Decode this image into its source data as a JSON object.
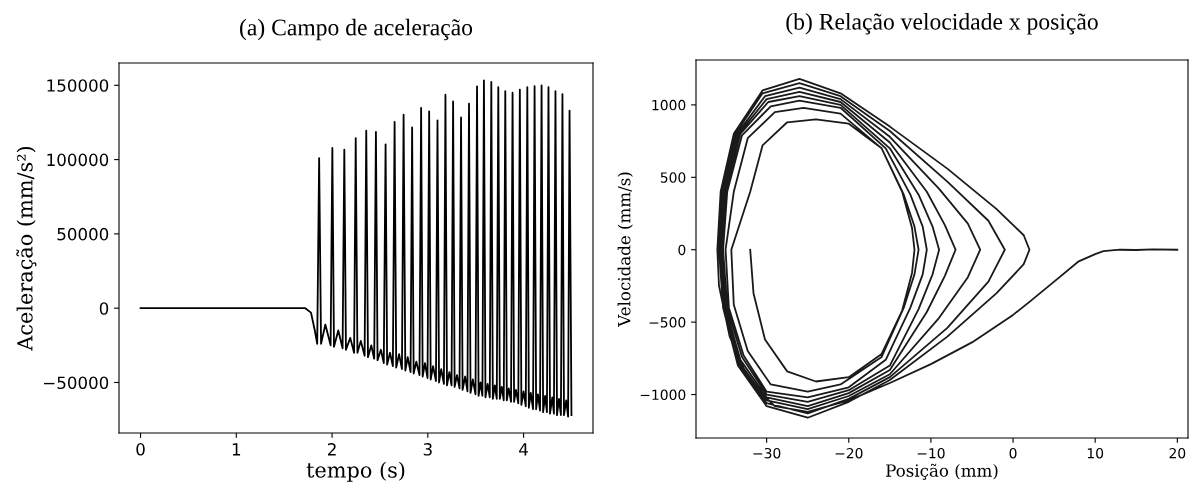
{
  "chart_data": [
    {
      "type": "line",
      "title": "(a) Campo de aceleração",
      "xlabel": "tempo (s)",
      "ylabel": "Aceleração (mm/s²)",
      "xlim": [
        -0.225,
        4.725
      ],
      "ylim": [
        -84000,
        165000
      ],
      "xticks": [
        0,
        1,
        2,
        3,
        4
      ],
      "yticks": [
        {
          "value": -50000,
          "label": "−50000"
        },
        0,
        50000,
        100000,
        150000
      ],
      "series": [
        {
          "color": "#000000",
          "x": [
            0,
            0.5,
            1.0,
            1.5,
            1.72,
            1.78,
            1.82,
            1.845,
            1.865,
            1.885,
            1.93,
            1.985,
            2.003,
            2.02,
            2.065,
            2.11,
            2.128,
            2.145,
            2.19,
            2.23,
            2.247,
            2.265,
            2.3,
            2.34,
            2.357,
            2.375,
            2.41,
            2.44,
            2.458,
            2.475,
            2.51,
            2.54,
            2.559,
            2.575,
            2.605,
            2.635,
            2.653,
            2.67,
            2.7,
            2.73,
            2.747,
            2.765,
            2.79,
            2.82,
            2.836,
            2.852,
            2.88,
            2.913,
            2.93,
            2.946,
            2.97,
            2.997,
            3.014,
            3.03,
            3.055,
            3.085,
            3.101,
            3.117,
            3.14,
            3.168,
            3.184,
            3.2,
            3.225,
            3.248,
            3.264,
            3.28,
            3.305,
            3.331,
            3.347,
            3.363,
            3.39,
            3.414,
            3.43,
            3.446,
            3.47,
            3.498,
            3.514,
            3.53,
            3.55,
            3.57,
            3.586,
            3.602,
            3.625,
            3.647,
            3.663,
            3.679,
            3.7,
            3.72,
            3.736,
            3.752,
            3.772,
            3.793,
            3.809,
            3.825,
            3.845,
            3.869,
            3.885,
            3.901,
            3.92,
            3.945,
            3.961,
            3.977,
            4.0,
            4.023,
            4.039,
            4.055,
            4.075,
            4.099,
            4.115,
            4.131,
            4.15,
            4.172,
            4.188,
            4.204,
            4.225,
            4.244,
            4.26,
            4.276,
            4.3,
            4.317,
            4.333,
            4.349,
            4.37,
            4.39,
            4.406,
            4.422,
            4.445,
            4.465,
            4.48,
            4.5
          ],
          "values": [
            0,
            0,
            0,
            0,
            0,
            -3000,
            -15000,
            -24000,
            101000,
            -24000,
            -11000,
            -25000,
            107800,
            -26000,
            -15000,
            -27000,
            106700,
            -28000,
            -20000,
            -30000,
            114500,
            -30000,
            -22000,
            -32000,
            119500,
            -33000,
            -25000,
            -34000,
            118600,
            -35000,
            -28000,
            -37000,
            110300,
            -38000,
            -30000,
            -39000,
            125300,
            -40000,
            -31000,
            -41000,
            130200,
            -42000,
            -33000,
            -43000,
            121700,
            -44000,
            -36000,
            -45000,
            134700,
            -46000,
            -37000,
            -47000,
            132500,
            -48000,
            -39000,
            -49000,
            126400,
            -50000,
            -41000,
            -51000,
            143700,
            -52000,
            -43000,
            -52000,
            139200,
            -53000,
            -45000,
            -54000,
            128400,
            -55000,
            -46000,
            -56000,
            137600,
            -57000,
            -48000,
            -58000,
            149300,
            -59000,
            -50000,
            -59000,
            153300,
            -60000,
            -51000,
            -60000,
            152200,
            -61000,
            -52000,
            -61000,
            148800,
            -61000,
            -53000,
            -62000,
            146100,
            -62000,
            -54000,
            -63000,
            145000,
            -63000,
            -55000,
            -64000,
            147100,
            -65000,
            -56000,
            -66000,
            148800,
            -67000,
            -57000,
            -68000,
            149400,
            -68000,
            -58000,
            -69000,
            149900,
            -70000,
            -59000,
            -70000,
            148800,
            -71000,
            -60000,
            -71000,
            146000,
            -72000,
            -61000,
            -72000,
            144000,
            -72000,
            -62000,
            -73000,
            133000,
            -72000
          ]
        }
      ]
    },
    {
      "type": "line",
      "title": "(b) Relação velocidade x posição",
      "xlabel": "Posição (mm)",
      "ylabel": "Velocidade (mm/s)",
      "xlim": [
        -38.6,
        21.3
      ],
      "ylim": [
        -1300,
        1310
      ],
      "xticks": [
        {
          "value": -30,
          "label": "−30"
        },
        {
          "value": -20,
          "label": "−20"
        },
        {
          "value": -10,
          "label": "−10"
        },
        0,
        10,
        20
      ],
      "yticks": [
        {
          "value": -1000,
          "label": "−1000"
        },
        {
          "value": -500,
          "label": "−500"
        },
        0,
        500,
        1000
      ],
      "series": [
        {
          "color": "#1a1a1a",
          "x": [
            20,
            17,
            15,
            13,
            11,
            10,
            8,
            5,
            2,
            0,
            -5,
            -10,
            -15,
            -20,
            -25,
            -29,
            -32,
            -34.5,
            -35.8,
            -36,
            -35.6,
            -34,
            -30.5,
            -26,
            -21,
            -15,
            -8,
            -2,
            1.3,
            2,
            1.3,
            -2,
            -8,
            -15,
            -20,
            -25,
            -30,
            -33.5,
            -35.3,
            -35.8,
            -35.4,
            -33.8,
            -30.5,
            -26,
            -21,
            -15,
            -8,
            -3,
            -1,
            -3,
            -8,
            -15,
            -20,
            -25,
            -30,
            -33.5,
            -35.2,
            -35.7,
            -35.3,
            -33.6,
            -30.2,
            -26,
            -21,
            -15,
            -9,
            -5.5,
            -4,
            -5.5,
            -9,
            -15,
            -20,
            -25,
            -30,
            -33.4,
            -35.1,
            -35.6,
            -35.2,
            -33.4,
            -30,
            -26,
            -21,
            -15,
            -10.5,
            -8.3,
            -7,
            -8.3,
            -10.5,
            -15,
            -20,
            -25,
            -30,
            -33.2,
            -35,
            -35.5,
            -35,
            -33.2,
            -29.8,
            -26,
            -21,
            -15,
            -11.5,
            -9.8,
            -9,
            -9.8,
            -11.5,
            -15,
            -20,
            -25,
            -30,
            -33,
            -34.8,
            -35.3,
            -34.8,
            -33,
            -29.5,
            -26,
            -21,
            -15.5,
            -12.5,
            -11,
            -10.5,
            -11,
            -12.5,
            -15.5,
            -20,
            -25,
            -30,
            -32.8,
            -34.6,
            -35,
            -34,
            -32.3,
            -29,
            -25.5,
            -21,
            -16,
            -13.3,
            -12,
            -11.5,
            -12,
            -13.3,
            -16,
            -21,
            -25,
            -29.5,
            -32.3,
            -34,
            -34.3,
            -32,
            -30.5,
            -27.5,
            -24,
            -20,
            -16,
            -13.5,
            -12.3,
            -12,
            -12.3,
            -13.5,
            -16,
            -20,
            -24,
            -27.5,
            -30.2,
            -31.6,
            -32
          ],
          "values": [
            0,
            2,
            -2,
            0,
            -10,
            -30,
            -80,
            -220,
            -360,
            -450,
            -640,
            -790,
            -920,
            -1040,
            -1120,
            -1080,
            -920,
            -600,
            -250,
            0,
            400,
            800,
            1100,
            1180,
            1080,
            850,
            560,
            280,
            100,
            0,
            -100,
            -300,
            -600,
            -900,
            -1050,
            -1160,
            -1080,
            -800,
            -400,
            0,
            400,
            800,
            1080,
            1150,
            1060,
            820,
            470,
            200,
            0,
            -220,
            -540,
            -880,
            -1030,
            -1130,
            -1060,
            -780,
            -400,
            0,
            400,
            800,
            1060,
            1120,
            1040,
            780,
            420,
            180,
            0,
            -190,
            -470,
            -860,
            -1010,
            -1100,
            -1040,
            -770,
            -400,
            0,
            400,
            800,
            1040,
            1090,
            1020,
            740,
            400,
            170,
            0,
            -180,
            -430,
            -830,
            -990,
            -1080,
            -1020,
            -760,
            -400,
            0,
            400,
            800,
            1020,
            1060,
            1000,
            700,
            380,
            160,
            0,
            -170,
            -410,
            -800,
            -970,
            -1050,
            -1000,
            -740,
            -400,
            0,
            400,
            790,
            990,
            1030,
            980,
            700,
            380,
            160,
            0,
            -170,
            -400,
            -760,
            -950,
            -1020,
            -980,
            -730,
            -400,
            0,
            400,
            770,
            950,
            980,
            940,
            700,
            380,
            160,
            0,
            -170,
            -400,
            -740,
            -930,
            -980,
            -930,
            -700,
            -380,
            0,
            400,
            720,
            880,
            900,
            870,
            700,
            400,
            150,
            0,
            -160,
            -420,
            -720,
            -880,
            -910,
            -840,
            -620,
            -300,
            0
          ]
        }
      ]
    }
  ]
}
